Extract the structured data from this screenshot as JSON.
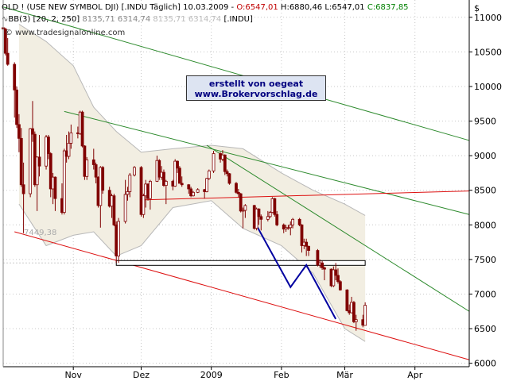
{
  "header": {
    "line1": {
      "prefix": "OLD ! (USE NEW SYMBOL DJI) [.INDU  Täglich] 10.03.2009 - ",
      "open": "O:6547,01",
      "high": " H:6880,46",
      "low": " L:6547,01",
      "close": " C:6837,85"
    },
    "line2": {
      "prefix": "BB(3) [20, 2, 250] ",
      "v1": "8135,71",
      "v2": " 6314,74",
      "v3": " 8135,71",
      "v4": " 6314,74",
      "suffix": " [.INDU]"
    },
    "watermark": "© www.tradesignalonline.com",
    "currency": "$"
  },
  "annotation": {
    "line1": "erstellt von oegeat",
    "line2": "www.Brokervorschlag.de"
  },
  "level_label": "7449,38",
  "colors": {
    "up_candle": "#ffffff",
    "down_candle": "#800000",
    "band_fill": "#f2eee2",
    "band_line": "#b8b8b8",
    "green_line": "#2e8b2e",
    "red_line": "#dd1111",
    "blue_line": "#0000a0",
    "grid": "#c8c8c8"
  },
  "chart_data": {
    "type": "candlestick",
    "title": "OLD ! (USE NEW SYMBOL DJI) [.INDU Täglich] 10.03.2009",
    "ylabel": "$",
    "ylim": [
      5950,
      11250
    ],
    "xlim": [
      "2008-10-01",
      "2009-04-25"
    ],
    "y_ticks": [
      6000,
      6500,
      7000,
      7500,
      8000,
      8500,
      9000,
      9500,
      10000,
      10500,
      11000
    ],
    "y_tick_labels": [
      "6000",
      "6500",
      "7000",
      "7500",
      "8000",
      "8500",
      "9000",
      "9500",
      "10000",
      "10500",
      "11000"
    ],
    "x_tick_labels": [
      {
        "label": "Nov",
        "date": "2008-11-01"
      },
      {
        "label": "Dez",
        "date": "2008-12-01"
      },
      {
        "label": "2009",
        "date": "2009-01-01"
      },
      {
        "label": "Feb",
        "date": "2009-02-01"
      },
      {
        "label": "Mär",
        "date": "2009-03-01"
      },
      {
        "label": "Apr",
        "date": "2009-04-01"
      }
    ],
    "horizontal_level": {
      "value": 7449.38,
      "from": "2008-11-20",
      "to": "2009-03-10"
    },
    "candles": [
      {
        "d": "2008-10-01",
        "o": 10850,
        "h": 10950,
        "l": 10700,
        "c": 10830
      },
      {
        "d": "2008-10-02",
        "o": 10830,
        "h": 10850,
        "l": 10450,
        "c": 10480
      },
      {
        "d": "2008-10-03",
        "o": 10480,
        "h": 10700,
        "l": 10300,
        "c": 10320
      },
      {
        "d": "2008-10-06",
        "o": 10320,
        "h": 10350,
        "l": 9550,
        "c": 9950
      },
      {
        "d": "2008-10-07",
        "o": 9950,
        "h": 10000,
        "l": 9400,
        "c": 9450
      },
      {
        "d": "2008-10-08",
        "o": 9450,
        "h": 9600,
        "l": 9050,
        "c": 9250
      },
      {
        "d": "2008-10-09",
        "o": 9250,
        "h": 9400,
        "l": 8550,
        "c": 8580
      },
      {
        "d": "2008-10-10",
        "o": 8580,
        "h": 8900,
        "l": 7880,
        "c": 8450
      },
      {
        "d": "2008-10-13",
        "o": 8450,
        "h": 9400,
        "l": 8400,
        "c": 9390
      },
      {
        "d": "2008-10-14",
        "o": 9390,
        "h": 9790,
        "l": 9200,
        "c": 9310
      },
      {
        "d": "2008-10-15",
        "o": 9310,
        "h": 9350,
        "l": 8550,
        "c": 8580
      },
      {
        "d": "2008-10-16",
        "o": 8580,
        "h": 8990,
        "l": 8200,
        "c": 8980
      },
      {
        "d": "2008-10-17",
        "o": 8980,
        "h": 9300,
        "l": 8700,
        "c": 8850
      },
      {
        "d": "2008-10-20",
        "o": 8850,
        "h": 9300,
        "l": 8800,
        "c": 9270
      },
      {
        "d": "2008-10-21",
        "o": 9270,
        "h": 9300,
        "l": 8950,
        "c": 9030
      },
      {
        "d": "2008-10-22",
        "o": 9030,
        "h": 9050,
        "l": 8400,
        "c": 8520
      },
      {
        "d": "2008-10-23",
        "o": 8520,
        "h": 8750,
        "l": 8300,
        "c": 8690
      },
      {
        "d": "2008-10-24",
        "o": 8690,
        "h": 8700,
        "l": 8200,
        "c": 8380
      },
      {
        "d": "2008-10-27",
        "o": 8380,
        "h": 8600,
        "l": 8150,
        "c": 8180
      },
      {
        "d": "2008-10-28",
        "o": 8180,
        "h": 9100,
        "l": 8150,
        "c": 9070
      },
      {
        "d": "2008-10-29",
        "o": 9070,
        "h": 9300,
        "l": 8900,
        "c": 8990
      },
      {
        "d": "2008-10-30",
        "o": 8990,
        "h": 9350,
        "l": 8950,
        "c": 9180
      },
      {
        "d": "2008-10-31",
        "o": 9180,
        "h": 9450,
        "l": 9100,
        "c": 9330
      },
      {
        "d": "2008-11-03",
        "o": 9330,
        "h": 9420,
        "l": 9250,
        "c": 9320
      },
      {
        "d": "2008-11-04",
        "o": 9320,
        "h": 9650,
        "l": 9300,
        "c": 9630
      },
      {
        "d": "2008-11-05",
        "o": 9630,
        "h": 9650,
        "l": 9120,
        "c": 9140
      },
      {
        "d": "2008-11-06",
        "o": 9140,
        "h": 9150,
        "l": 8650,
        "c": 8700
      },
      {
        "d": "2008-11-07",
        "o": 8700,
        "h": 8980,
        "l": 8650,
        "c": 8940
      },
      {
        "d": "2008-11-10",
        "o": 8940,
        "h": 9100,
        "l": 8800,
        "c": 8870
      },
      {
        "d": "2008-11-11",
        "o": 8870,
        "h": 8900,
        "l": 8600,
        "c": 8690
      },
      {
        "d": "2008-11-12",
        "o": 8690,
        "h": 8700,
        "l": 8250,
        "c": 8280
      },
      {
        "d": "2008-11-13",
        "o": 8280,
        "h": 8850,
        "l": 7960,
        "c": 8830
      },
      {
        "d": "2008-11-14",
        "o": 8830,
        "h": 8850,
        "l": 8450,
        "c": 8500
      },
      {
        "d": "2008-11-17",
        "o": 8500,
        "h": 8550,
        "l": 8250,
        "c": 8270
      },
      {
        "d": "2008-11-18",
        "o": 8270,
        "h": 8450,
        "l": 8100,
        "c": 8420
      },
      {
        "d": "2008-11-19",
        "o": 8420,
        "h": 8450,
        "l": 7980,
        "c": 8000
      },
      {
        "d": "2008-11-20",
        "o": 8000,
        "h": 8050,
        "l": 7450,
        "c": 7550
      },
      {
        "d": "2008-11-21",
        "o": 7550,
        "h": 8100,
        "l": 7450,
        "c": 8050
      },
      {
        "d": "2008-11-24",
        "o": 8050,
        "h": 8650,
        "l": 8020,
        "c": 8440
      },
      {
        "d": "2008-11-25",
        "o": 8440,
        "h": 8550,
        "l": 8350,
        "c": 8480
      },
      {
        "d": "2008-11-26",
        "o": 8480,
        "h": 8750,
        "l": 8400,
        "c": 8720
      },
      {
        "d": "2008-11-28",
        "o": 8720,
        "h": 8850,
        "l": 8700,
        "c": 8830
      },
      {
        "d": "2008-12-01",
        "o": 8830,
        "h": 8850,
        "l": 8120,
        "c": 8150
      },
      {
        "d": "2008-12-02",
        "o": 8150,
        "h": 8450,
        "l": 8100,
        "c": 8420
      },
      {
        "d": "2008-12-03",
        "o": 8420,
        "h": 8650,
        "l": 8250,
        "c": 8590
      },
      {
        "d": "2008-12-04",
        "o": 8590,
        "h": 8600,
        "l": 8350,
        "c": 8380
      },
      {
        "d": "2008-12-05",
        "o": 8380,
        "h": 8650,
        "l": 8220,
        "c": 8630
      },
      {
        "d": "2008-12-08",
        "o": 8630,
        "h": 9000,
        "l": 8620,
        "c": 8930
      },
      {
        "d": "2008-12-09",
        "o": 8930,
        "h": 8950,
        "l": 8650,
        "c": 8690
      },
      {
        "d": "2008-12-10",
        "o": 8690,
        "h": 8850,
        "l": 8650,
        "c": 8760
      },
      {
        "d": "2008-12-11",
        "o": 8760,
        "h": 8800,
        "l": 8550,
        "c": 8570
      },
      {
        "d": "2008-12-12",
        "o": 8570,
        "h": 8650,
        "l": 8300,
        "c": 8630
      },
      {
        "d": "2008-12-15",
        "o": 8630,
        "h": 8650,
        "l": 8500,
        "c": 8560
      },
      {
        "d": "2008-12-16",
        "o": 8560,
        "h": 8950,
        "l": 8550,
        "c": 8920
      },
      {
        "d": "2008-12-17",
        "o": 8920,
        "h": 8930,
        "l": 8750,
        "c": 8820
      },
      {
        "d": "2008-12-18",
        "o": 8820,
        "h": 8850,
        "l": 8600,
        "c": 8600
      },
      {
        "d": "2008-12-19",
        "o": 8600,
        "h": 8700,
        "l": 8550,
        "c": 8580
      },
      {
        "d": "2008-12-22",
        "o": 8580,
        "h": 8590,
        "l": 8450,
        "c": 8520
      },
      {
        "d": "2008-12-23",
        "o": 8520,
        "h": 8550,
        "l": 8400,
        "c": 8420
      },
      {
        "d": "2008-12-24",
        "o": 8420,
        "h": 8490,
        "l": 8410,
        "c": 8470
      },
      {
        "d": "2008-12-26",
        "o": 8470,
        "h": 8530,
        "l": 8460,
        "c": 8510
      },
      {
        "d": "2008-12-29",
        "o": 8510,
        "h": 8520,
        "l": 8380,
        "c": 8480
      },
      {
        "d": "2008-12-30",
        "o": 8480,
        "h": 8680,
        "l": 8470,
        "c": 8670
      },
      {
        "d": "2008-12-31",
        "o": 8670,
        "h": 8800,
        "l": 8650,
        "c": 8780
      },
      {
        "d": "2009-01-02",
        "o": 8780,
        "h": 9070,
        "l": 8750,
        "c": 9030
      },
      {
        "d": "2009-01-05",
        "o": 9030,
        "h": 9050,
        "l": 8900,
        "c": 8950
      },
      {
        "d": "2009-01-06",
        "o": 8950,
        "h": 9080,
        "l": 8920,
        "c": 9010
      },
      {
        "d": "2009-01-07",
        "o": 9010,
        "h": 9020,
        "l": 8720,
        "c": 8770
      },
      {
        "d": "2009-01-08",
        "o": 8770,
        "h": 8800,
        "l": 8700,
        "c": 8740
      },
      {
        "d": "2009-01-09",
        "o": 8740,
        "h": 8750,
        "l": 8580,
        "c": 8600
      },
      {
        "d": "2009-01-12",
        "o": 8600,
        "h": 8620,
        "l": 8450,
        "c": 8470
      },
      {
        "d": "2009-01-13",
        "o": 8470,
        "h": 8520,
        "l": 8400,
        "c": 8450
      },
      {
        "d": "2009-01-14",
        "o": 8450,
        "h": 8460,
        "l": 8180,
        "c": 8200
      },
      {
        "d": "2009-01-15",
        "o": 8200,
        "h": 8250,
        "l": 7950,
        "c": 8210
      },
      {
        "d": "2009-01-16",
        "o": 8210,
        "h": 8300,
        "l": 8100,
        "c": 8280
      },
      {
        "d": "2009-01-20",
        "o": 8280,
        "h": 8290,
        "l": 7930,
        "c": 7950
      },
      {
        "d": "2009-01-21",
        "o": 7950,
        "h": 8250,
        "l": 7920,
        "c": 8230
      },
      {
        "d": "2009-01-22",
        "o": 8230,
        "h": 8240,
        "l": 8000,
        "c": 8120
      },
      {
        "d": "2009-01-23",
        "o": 8120,
        "h": 8150,
        "l": 7920,
        "c": 8080
      },
      {
        "d": "2009-01-26",
        "o": 8080,
        "h": 8200,
        "l": 8050,
        "c": 8120
      },
      {
        "d": "2009-01-27",
        "o": 8120,
        "h": 8200,
        "l": 8100,
        "c": 8180
      },
      {
        "d": "2009-01-28",
        "o": 8180,
        "h": 8400,
        "l": 8170,
        "c": 8380
      },
      {
        "d": "2009-01-29",
        "o": 8380,
        "h": 8390,
        "l": 8120,
        "c": 8150
      },
      {
        "d": "2009-01-30",
        "o": 8150,
        "h": 8200,
        "l": 7980,
        "c": 8000
      },
      {
        "d": "2009-02-02",
        "o": 8000,
        "h": 8020,
        "l": 7880,
        "c": 7940
      },
      {
        "d": "2009-02-03",
        "o": 7940,
        "h": 8000,
        "l": 7900,
        "c": 7960
      },
      {
        "d": "2009-02-04",
        "o": 7960,
        "h": 8000,
        "l": 7930,
        "c": 7960
      },
      {
        "d": "2009-02-05",
        "o": 7960,
        "h": 8050,
        "l": 7850,
        "c": 8000
      },
      {
        "d": "2009-02-06",
        "o": 8000,
        "h": 8100,
        "l": 7950,
        "c": 8080
      },
      {
        "d": "2009-02-09",
        "o": 8080,
        "h": 8100,
        "l": 7980,
        "c": 8000
      },
      {
        "d": "2009-02-10",
        "o": 8000,
        "h": 8010,
        "l": 7600,
        "c": 7700
      },
      {
        "d": "2009-02-11",
        "o": 7700,
        "h": 7800,
        "l": 7650,
        "c": 7750
      },
      {
        "d": "2009-02-12",
        "o": 7750,
        "h": 7800,
        "l": 7550,
        "c": 7690
      },
      {
        "d": "2009-02-13",
        "o": 7690,
        "h": 7700,
        "l": 7550,
        "c": 7630
      },
      {
        "d": "2009-02-17",
        "o": 7630,
        "h": 7650,
        "l": 7400,
        "c": 7420
      },
      {
        "d": "2009-02-18",
        "o": 7420,
        "h": 7500,
        "l": 7380,
        "c": 7450
      },
      {
        "d": "2009-02-19",
        "o": 7450,
        "h": 7480,
        "l": 7350,
        "c": 7380
      },
      {
        "d": "2009-02-20",
        "o": 7380,
        "h": 7400,
        "l": 7200,
        "c": 7360
      },
      {
        "d": "2009-02-23",
        "o": 7360,
        "h": 7370,
        "l": 7100,
        "c": 7120
      },
      {
        "d": "2009-02-24",
        "o": 7120,
        "h": 7400,
        "l": 7100,
        "c": 7350
      },
      {
        "d": "2009-02-25",
        "o": 7350,
        "h": 7450,
        "l": 7200,
        "c": 7270
      },
      {
        "d": "2009-02-26",
        "o": 7270,
        "h": 7370,
        "l": 7150,
        "c": 7180
      },
      {
        "d": "2009-02-27",
        "o": 7180,
        "h": 7200,
        "l": 7050,
        "c": 7060
      },
      {
        "d": "2009-03-02",
        "o": 7060,
        "h": 7070,
        "l": 6750,
        "c": 6760
      },
      {
        "d": "2009-03-03",
        "o": 6760,
        "h": 6850,
        "l": 6700,
        "c": 6730
      },
      {
        "d": "2009-03-04",
        "o": 6730,
        "h": 6960,
        "l": 6720,
        "c": 6880
      },
      {
        "d": "2009-03-05",
        "o": 6880,
        "h": 6900,
        "l": 6580,
        "c": 6600
      },
      {
        "d": "2009-03-06",
        "o": 6600,
        "h": 6700,
        "l": 6470,
        "c": 6630
      },
      {
        "d": "2009-03-09",
        "o": 6630,
        "h": 6700,
        "l": 6520,
        "c": 6550
      },
      {
        "d": "2009-03-10",
        "o": 6547.01,
        "h": 6880.46,
        "l": 6547.01,
        "c": 6837.85
      }
    ],
    "bollinger": {
      "name": "BB(3) [20, 2, 250]",
      "upper": [
        [
          "2008-10-08",
          10900
        ],
        [
          "2008-10-20",
          10650
        ],
        [
          "2008-11-01",
          10300
        ],
        [
          "2008-11-10",
          9700
        ],
        [
          "2008-11-20",
          9350
        ],
        [
          "2008-12-01",
          9050
        ],
        [
          "2008-12-15",
          9100
        ],
        [
          "2009-01-01",
          9150
        ],
        [
          "2009-01-15",
          9100
        ],
        [
          "2009-02-01",
          8750
        ],
        [
          "2009-02-15",
          8500
        ],
        [
          "2009-03-01",
          8300
        ],
        [
          "2009-03-10",
          8135.71
        ]
      ],
      "lower": [
        [
          "2008-10-08",
          8300
        ],
        [
          "2008-10-20",
          7700
        ],
        [
          "2008-11-01",
          7850
        ],
        [
          "2008-11-10",
          7900
        ],
        [
          "2008-11-20",
          7550
        ],
        [
          "2008-12-01",
          7700
        ],
        [
          "2008-12-15",
          8250
        ],
        [
          "2009-01-01",
          8350
        ],
        [
          "2009-01-15",
          7950
        ],
        [
          "2009-02-01",
          7700
        ],
        [
          "2009-02-15",
          7300
        ],
        [
          "2009-03-01",
          6500
        ],
        [
          "2009-03-10",
          6314.74
        ]
      ]
    },
    "trendlines": [
      {
        "color": "green",
        "x1": "2008-10-01",
        "y1": 11150,
        "x2": "2009-04-25",
        "y2": 9220
      },
      {
        "color": "green",
        "x1": "2008-10-28",
        "y1": 9640,
        "x2": "2009-04-25",
        "y2": 8150
      },
      {
        "color": "green",
        "x1": "2008-12-30",
        "y1": 9150,
        "x2": "2009-04-25",
        "y2": 6750
      },
      {
        "color": "red",
        "x1": "2008-10-06",
        "y1": 7900,
        "x2": "2009-04-25",
        "y2": 6050
      },
      {
        "color": "red",
        "x1": "2008-12-01",
        "y1": 8360,
        "x2": "2009-04-25",
        "y2": 8490
      }
    ],
    "projection": {
      "color": "blue",
      "points": [
        [
          "2009-01-20",
          8050
        ],
        [
          "2009-02-05",
          7100
        ],
        [
          "2009-02-12",
          7420
        ],
        [
          "2009-02-25",
          6640
        ]
      ]
    }
  }
}
